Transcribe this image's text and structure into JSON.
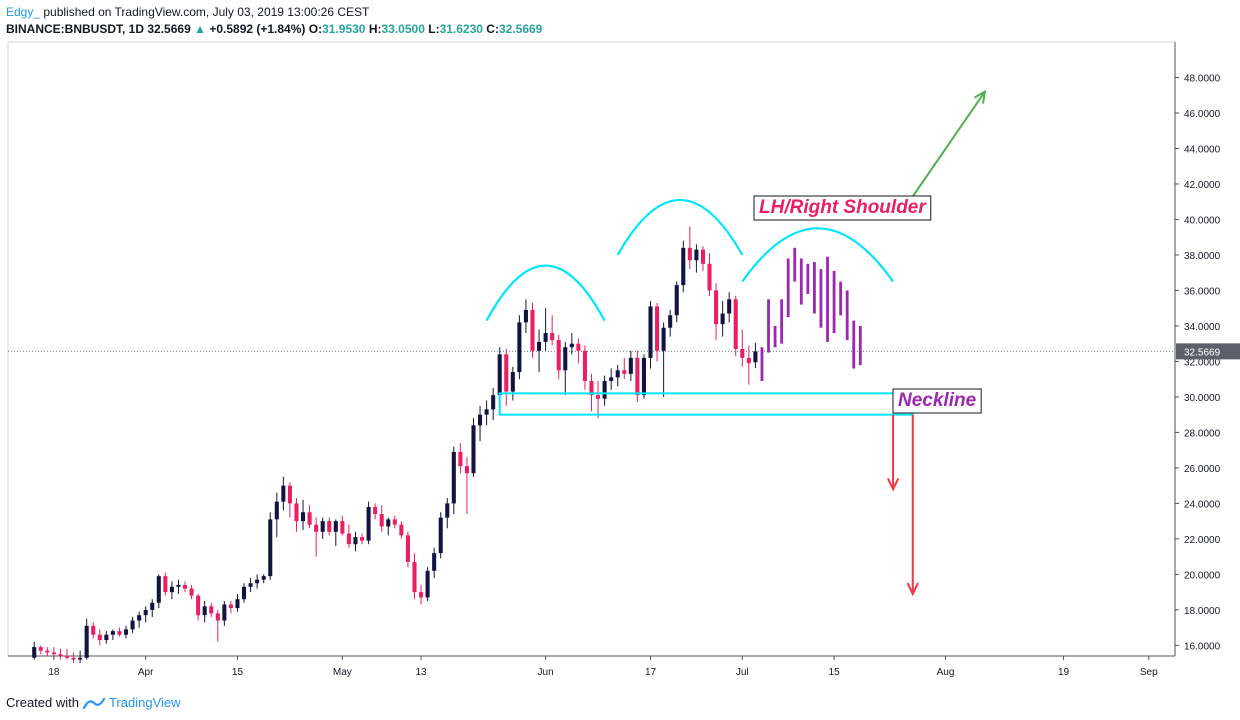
{
  "header": {
    "author": "Edgy_",
    "published": " published on TradingView.com, July 03, 2019 13:00:26 CEST",
    "symbol_line": "BINANCE:BNBUSDT, 1D",
    "last": "32.5669",
    "change_arrow": "▲",
    "change": "+0.5892 (+1.84%)",
    "o_label": "O:",
    "o": "31.9530",
    "h_label": "H:",
    "h": "33.0500",
    "l_label": "L:",
    "l": "31.6230",
    "c_label": "C:",
    "c": "32.5669"
  },
  "footer": {
    "created_with": "Created with",
    "brand": "TradingView"
  },
  "colors": {
    "up": "#131342",
    "down": "#e91e63",
    "neckline_box": "#00e5ff",
    "arc": "#00e5ff",
    "projection": "#9c27b0",
    "arrow_up": "#4caf50",
    "arrow_down": "#f23645",
    "price_tag": "#5d606b"
  },
  "chart_data": {
    "type": "candlestick",
    "symbol": "BINANCE:BNBUSDT",
    "interval": "1D",
    "ylim": [
      15.4,
      50.0
    ],
    "yticks": [
      16,
      18,
      20,
      22,
      24,
      26,
      28,
      30,
      32,
      34,
      36,
      38,
      40,
      42,
      44,
      46,
      48
    ],
    "ytick_labels": [
      "16.0000",
      "18.0000",
      "20.0000",
      "22.0000",
      "24.0000",
      "26.0000",
      "28.0000",
      "30.0000",
      "32.0000",
      "34.0000",
      "36.0000",
      "38.0000",
      "40.0000",
      "42.0000",
      "44.0000",
      "46.0000",
      "48.0000"
    ],
    "x_start": "2019-03-11",
    "x_end": "2019-09-05",
    "xticks": [
      {
        "date": "2019-03-18",
        "label": "18"
      },
      {
        "date": "2019-04-01",
        "label": "Apr"
      },
      {
        "date": "2019-04-15",
        "label": "15"
      },
      {
        "date": "2019-05-01",
        "label": "May"
      },
      {
        "date": "2019-05-13",
        "label": "13"
      },
      {
        "date": "2019-06-01",
        "label": "Jun"
      },
      {
        "date": "2019-06-17",
        "label": "17"
      },
      {
        "date": "2019-07-01",
        "label": "Jul"
      },
      {
        "date": "2019-07-15",
        "label": "15"
      },
      {
        "date": "2019-08-01",
        "label": "Aug"
      },
      {
        "date": "2019-08-19",
        "label": "19"
      },
      {
        "date": "2019-09-01",
        "label": "Sep"
      }
    ],
    "last_price": 32.5669,
    "last_price_label": "32.5669",
    "candles": [
      {
        "date": "2019-03-15",
        "o": 15.3,
        "h": 16.2,
        "l": 15.2,
        "c": 15.9
      },
      {
        "date": "2019-03-16",
        "o": 15.9,
        "h": 16.0,
        "l": 15.5,
        "c": 15.7
      },
      {
        "date": "2019-03-17",
        "o": 15.7,
        "h": 15.9,
        "l": 15.4,
        "c": 15.6
      },
      {
        "date": "2019-03-18",
        "o": 15.6,
        "h": 15.9,
        "l": 15.3,
        "c": 15.5
      },
      {
        "date": "2019-03-19",
        "o": 15.5,
        "h": 15.8,
        "l": 15.2,
        "c": 15.4
      },
      {
        "date": "2019-03-20",
        "o": 15.4,
        "h": 15.8,
        "l": 15.2,
        "c": 15.3
      },
      {
        "date": "2019-03-21",
        "o": 15.3,
        "h": 15.6,
        "l": 15.0,
        "c": 15.2
      },
      {
        "date": "2019-03-22",
        "o": 15.2,
        "h": 15.7,
        "l": 15.0,
        "c": 15.3
      },
      {
        "date": "2019-03-23",
        "o": 15.3,
        "h": 17.5,
        "l": 15.2,
        "c": 17.1
      },
      {
        "date": "2019-03-24",
        "o": 17.1,
        "h": 17.3,
        "l": 16.4,
        "c": 16.6
      },
      {
        "date": "2019-03-25",
        "o": 16.6,
        "h": 16.9,
        "l": 16.0,
        "c": 16.3
      },
      {
        "date": "2019-03-26",
        "o": 16.3,
        "h": 16.8,
        "l": 16.1,
        "c": 16.6
      },
      {
        "date": "2019-03-27",
        "o": 16.6,
        "h": 16.9,
        "l": 16.3,
        "c": 16.8
      },
      {
        "date": "2019-03-28",
        "o": 16.8,
        "h": 17.0,
        "l": 16.5,
        "c": 16.6
      },
      {
        "date": "2019-03-29",
        "o": 16.6,
        "h": 17.1,
        "l": 16.4,
        "c": 16.9
      },
      {
        "date": "2019-03-30",
        "o": 16.9,
        "h": 17.6,
        "l": 16.7,
        "c": 17.4
      },
      {
        "date": "2019-03-31",
        "o": 17.4,
        "h": 17.9,
        "l": 17.0,
        "c": 17.7
      },
      {
        "date": "2019-04-01",
        "o": 17.7,
        "h": 18.2,
        "l": 17.3,
        "c": 18.0
      },
      {
        "date": "2019-04-02",
        "o": 18.0,
        "h": 18.6,
        "l": 17.6,
        "c": 18.4
      },
      {
        "date": "2019-04-03",
        "o": 18.4,
        "h": 20.0,
        "l": 18.1,
        "c": 19.9
      },
      {
        "date": "2019-04-04",
        "o": 19.9,
        "h": 20.1,
        "l": 18.8,
        "c": 19.0
      },
      {
        "date": "2019-04-05",
        "o": 19.0,
        "h": 19.6,
        "l": 18.6,
        "c": 19.3
      },
      {
        "date": "2019-04-06",
        "o": 19.3,
        "h": 19.7,
        "l": 18.9,
        "c": 19.4
      },
      {
        "date": "2019-04-07",
        "o": 19.4,
        "h": 19.6,
        "l": 19.0,
        "c": 19.2
      },
      {
        "date": "2019-04-08",
        "o": 19.2,
        "h": 19.4,
        "l": 18.6,
        "c": 18.8
      },
      {
        "date": "2019-04-09",
        "o": 18.8,
        "h": 18.9,
        "l": 17.4,
        "c": 17.7
      },
      {
        "date": "2019-04-10",
        "o": 17.7,
        "h": 18.5,
        "l": 17.3,
        "c": 18.2
      },
      {
        "date": "2019-04-11",
        "o": 18.2,
        "h": 18.4,
        "l": 17.6,
        "c": 17.8
      },
      {
        "date": "2019-04-12",
        "o": 17.8,
        "h": 18.0,
        "l": 16.2,
        "c": 17.4
      },
      {
        "date": "2019-04-13",
        "o": 17.4,
        "h": 18.5,
        "l": 17.1,
        "c": 18.3
      },
      {
        "date": "2019-04-14",
        "o": 18.3,
        "h": 18.5,
        "l": 17.8,
        "c": 18.1
      },
      {
        "date": "2019-04-15",
        "o": 18.1,
        "h": 18.9,
        "l": 17.9,
        "c": 18.6
      },
      {
        "date": "2019-04-16",
        "o": 18.6,
        "h": 19.5,
        "l": 18.4,
        "c": 19.3
      },
      {
        "date": "2019-04-17",
        "o": 19.3,
        "h": 19.8,
        "l": 19.0,
        "c": 19.5
      },
      {
        "date": "2019-04-18",
        "o": 19.5,
        "h": 20.0,
        "l": 19.2,
        "c": 19.7
      },
      {
        "date": "2019-04-19",
        "o": 19.7,
        "h": 20.0,
        "l": 19.5,
        "c": 19.9
      },
      {
        "date": "2019-04-20",
        "o": 19.9,
        "h": 23.5,
        "l": 19.7,
        "c": 23.1
      },
      {
        "date": "2019-04-21",
        "o": 23.1,
        "h": 24.6,
        "l": 22.1,
        "c": 24.1
      },
      {
        "date": "2019-04-22",
        "o": 24.1,
        "h": 25.5,
        "l": 23.6,
        "c": 25.0
      },
      {
        "date": "2019-04-23",
        "o": 25.0,
        "h": 25.2,
        "l": 23.2,
        "c": 24.0
      },
      {
        "date": "2019-04-24",
        "o": 24.0,
        "h": 24.3,
        "l": 22.4,
        "c": 23.0
      },
      {
        "date": "2019-04-25",
        "o": 23.0,
        "h": 24.2,
        "l": 22.5,
        "c": 23.5
      },
      {
        "date": "2019-04-26",
        "o": 23.5,
        "h": 23.9,
        "l": 22.6,
        "c": 22.8
      },
      {
        "date": "2019-04-27",
        "o": 22.8,
        "h": 23.2,
        "l": 21.0,
        "c": 22.4
      },
      {
        "date": "2019-04-28",
        "o": 22.4,
        "h": 23.2,
        "l": 22.0,
        "c": 23.0
      },
      {
        "date": "2019-04-29",
        "o": 23.0,
        "h": 23.2,
        "l": 22.2,
        "c": 22.4
      },
      {
        "date": "2019-04-30",
        "o": 22.4,
        "h": 23.1,
        "l": 21.6,
        "c": 23.0
      },
      {
        "date": "2019-05-01",
        "o": 23.0,
        "h": 23.3,
        "l": 22.2,
        "c": 22.3
      },
      {
        "date": "2019-05-02",
        "o": 22.3,
        "h": 22.8,
        "l": 21.5,
        "c": 21.7
      },
      {
        "date": "2019-05-03",
        "o": 21.7,
        "h": 22.4,
        "l": 21.3,
        "c": 22.1
      },
      {
        "date": "2019-05-04",
        "o": 22.1,
        "h": 22.3,
        "l": 21.7,
        "c": 21.9
      },
      {
        "date": "2019-05-05",
        "o": 21.9,
        "h": 24.1,
        "l": 21.7,
        "c": 23.8
      },
      {
        "date": "2019-05-06",
        "o": 23.8,
        "h": 24.0,
        "l": 23.1,
        "c": 23.4
      },
      {
        "date": "2019-05-07",
        "o": 23.4,
        "h": 23.9,
        "l": 22.4,
        "c": 22.7
      },
      {
        "date": "2019-05-08",
        "o": 22.7,
        "h": 23.2,
        "l": 22.2,
        "c": 23.1
      },
      {
        "date": "2019-05-09",
        "o": 23.1,
        "h": 23.3,
        "l": 22.6,
        "c": 22.8
      },
      {
        "date": "2019-05-10",
        "o": 22.8,
        "h": 23.0,
        "l": 22.0,
        "c": 22.2
      },
      {
        "date": "2019-05-11",
        "o": 22.2,
        "h": 22.4,
        "l": 20.4,
        "c": 20.7
      },
      {
        "date": "2019-05-12",
        "o": 20.7,
        "h": 21.2,
        "l": 18.6,
        "c": 19.0
      },
      {
        "date": "2019-05-13",
        "o": 19.0,
        "h": 19.4,
        "l": 18.3,
        "c": 18.7
      },
      {
        "date": "2019-05-14",
        "o": 18.7,
        "h": 20.4,
        "l": 18.5,
        "c": 20.2
      },
      {
        "date": "2019-05-15",
        "o": 20.2,
        "h": 21.5,
        "l": 19.8,
        "c": 21.2
      },
      {
        "date": "2019-05-16",
        "o": 21.2,
        "h": 23.5,
        "l": 20.9,
        "c": 23.2
      },
      {
        "date": "2019-05-17",
        "o": 23.2,
        "h": 24.3,
        "l": 22.6,
        "c": 24.0
      },
      {
        "date": "2019-05-18",
        "o": 24.0,
        "h": 27.2,
        "l": 23.4,
        "c": 26.9
      },
      {
        "date": "2019-05-19",
        "o": 26.9,
        "h": 27.4,
        "l": 25.7,
        "c": 26.1
      },
      {
        "date": "2019-05-20",
        "o": 26.1,
        "h": 26.6,
        "l": 23.4,
        "c": 25.7
      },
      {
        "date": "2019-05-21",
        "o": 25.7,
        "h": 28.8,
        "l": 25.5,
        "c": 28.4
      },
      {
        "date": "2019-05-22",
        "o": 28.4,
        "h": 29.5,
        "l": 27.5,
        "c": 29.0
      },
      {
        "date": "2019-05-23",
        "o": 29.0,
        "h": 29.8,
        "l": 28.4,
        "c": 29.3
      },
      {
        "date": "2019-05-24",
        "o": 29.3,
        "h": 30.5,
        "l": 28.7,
        "c": 30.1
      },
      {
        "date": "2019-05-25",
        "o": 30.1,
        "h": 32.8,
        "l": 29.8,
        "c": 32.4
      },
      {
        "date": "2019-05-26",
        "o": 32.4,
        "h": 32.7,
        "l": 29.5,
        "c": 30.3
      },
      {
        "date": "2019-05-27",
        "o": 30.3,
        "h": 31.7,
        "l": 29.8,
        "c": 31.4
      },
      {
        "date": "2019-05-28",
        "o": 31.4,
        "h": 34.6,
        "l": 31.0,
        "c": 34.2
      },
      {
        "date": "2019-05-29",
        "o": 34.2,
        "h": 35.5,
        "l": 33.6,
        "c": 34.9
      },
      {
        "date": "2019-05-30",
        "o": 34.9,
        "h": 35.3,
        "l": 32.2,
        "c": 32.6
      },
      {
        "date": "2019-05-31",
        "o": 32.6,
        "h": 33.8,
        "l": 31.4,
        "c": 33.1
      },
      {
        "date": "2019-06-01",
        "o": 33.1,
        "h": 35.0,
        "l": 32.6,
        "c": 33.6
      },
      {
        "date": "2019-06-02",
        "o": 33.6,
        "h": 34.6,
        "l": 32.9,
        "c": 33.2
      },
      {
        "date": "2019-06-03",
        "o": 33.2,
        "h": 33.5,
        "l": 31.0,
        "c": 31.5
      },
      {
        "date": "2019-06-04",
        "o": 31.5,
        "h": 33.1,
        "l": 30.1,
        "c": 32.8
      },
      {
        "date": "2019-06-05",
        "o": 32.8,
        "h": 33.6,
        "l": 32.4,
        "c": 33.0
      },
      {
        "date": "2019-06-06",
        "o": 33.0,
        "h": 33.3,
        "l": 31.9,
        "c": 32.6
      },
      {
        "date": "2019-06-07",
        "o": 32.6,
        "h": 32.9,
        "l": 30.4,
        "c": 30.9
      },
      {
        "date": "2019-06-08",
        "o": 30.9,
        "h": 31.3,
        "l": 29.2,
        "c": 30.1
      },
      {
        "date": "2019-06-09",
        "o": 30.1,
        "h": 30.9,
        "l": 28.8,
        "c": 29.9
      },
      {
        "date": "2019-06-10",
        "o": 29.9,
        "h": 31.2,
        "l": 29.5,
        "c": 30.9
      },
      {
        "date": "2019-06-11",
        "o": 30.9,
        "h": 31.6,
        "l": 30.4,
        "c": 31.1
      },
      {
        "date": "2019-06-12",
        "o": 31.1,
        "h": 31.8,
        "l": 30.6,
        "c": 31.5
      },
      {
        "date": "2019-06-13",
        "o": 31.5,
        "h": 32.2,
        "l": 31.0,
        "c": 31.3
      },
      {
        "date": "2019-06-14",
        "o": 31.3,
        "h": 32.6,
        "l": 30.9,
        "c": 32.2
      },
      {
        "date": "2019-06-15",
        "o": 32.2,
        "h": 32.6,
        "l": 29.7,
        "c": 30.1
      },
      {
        "date": "2019-06-16",
        "o": 30.1,
        "h": 32.4,
        "l": 29.9,
        "c": 32.2
      },
      {
        "date": "2019-06-17",
        "o": 32.2,
        "h": 35.4,
        "l": 31.6,
        "c": 35.1
      },
      {
        "date": "2019-06-18",
        "o": 35.1,
        "h": 35.3,
        "l": 32.0,
        "c": 32.6
      },
      {
        "date": "2019-06-19",
        "o": 32.6,
        "h": 34.2,
        "l": 30.0,
        "c": 33.9
      },
      {
        "date": "2019-06-20",
        "o": 33.9,
        "h": 34.9,
        "l": 33.4,
        "c": 34.6
      },
      {
        "date": "2019-06-21",
        "o": 34.6,
        "h": 36.5,
        "l": 34.2,
        "c": 36.3
      },
      {
        "date": "2019-06-22",
        "o": 36.3,
        "h": 38.8,
        "l": 35.9,
        "c": 38.4
      },
      {
        "date": "2019-06-23",
        "o": 38.4,
        "h": 39.6,
        "l": 37.2,
        "c": 37.7
      },
      {
        "date": "2019-06-24",
        "o": 37.7,
        "h": 38.6,
        "l": 37.0,
        "c": 38.3
      },
      {
        "date": "2019-06-25",
        "o": 38.3,
        "h": 38.5,
        "l": 37.1,
        "c": 37.5
      },
      {
        "date": "2019-06-26",
        "o": 37.5,
        "h": 38.1,
        "l": 35.7,
        "c": 36.0
      },
      {
        "date": "2019-06-27",
        "o": 36.0,
        "h": 36.4,
        "l": 33.2,
        "c": 34.1
      },
      {
        "date": "2019-06-28",
        "o": 34.1,
        "h": 35.4,
        "l": 33.4,
        "c": 34.7
      },
      {
        "date": "2019-06-29",
        "o": 34.7,
        "h": 35.9,
        "l": 34.2,
        "c": 35.5
      },
      {
        "date": "2019-06-30",
        "o": 35.5,
        "h": 35.7,
        "l": 32.3,
        "c": 32.7
      },
      {
        "date": "2019-07-01",
        "o": 32.7,
        "h": 33.8,
        "l": 31.7,
        "c": 32.2
      },
      {
        "date": "2019-07-02",
        "o": 32.2,
        "h": 32.9,
        "l": 30.7,
        "c": 31.9
      },
      {
        "date": "2019-07-03",
        "o": 31.953,
        "h": 33.05,
        "l": 31.623,
        "c": 32.5669
      }
    ],
    "projection_bars": [
      {
        "date": "2019-07-04",
        "h": 32.8,
        "l": 30.9
      },
      {
        "date": "2019-07-05",
        "h": 35.5,
        "l": 32.5
      },
      {
        "date": "2019-07-06",
        "h": 34.0,
        "l": 32.8
      },
      {
        "date": "2019-07-07",
        "h": 35.5,
        "l": 33.0
      },
      {
        "date": "2019-07-08",
        "h": 37.8,
        "l": 34.5
      },
      {
        "date": "2019-07-09",
        "h": 38.4,
        "l": 36.5
      },
      {
        "date": "2019-07-10",
        "h": 37.8,
        "l": 35.2
      },
      {
        "date": "2019-07-11",
        "h": 37.5,
        "l": 35.8
      },
      {
        "date": "2019-07-12",
        "h": 37.6,
        "l": 34.7
      },
      {
        "date": "2019-07-13",
        "h": 37.2,
        "l": 33.9
      },
      {
        "date": "2019-07-14",
        "h": 37.9,
        "l": 33.1
      },
      {
        "date": "2019-07-15",
        "h": 37.1,
        "l": 33.6
      },
      {
        "date": "2019-07-16",
        "h": 36.5,
        "l": 34.6
      },
      {
        "date": "2019-07-17",
        "h": 36.0,
        "l": 33.2
      },
      {
        "date": "2019-07-18",
        "h": 34.3,
        "l": 31.6
      },
      {
        "date": "2019-07-19",
        "h": 34.0,
        "l": 31.8
      }
    ],
    "annotations": {
      "neckline": {
        "label": "Neckline",
        "x_from": "2019-05-25",
        "x_to": "2019-07-27",
        "y_low": 29.0,
        "y_high": 30.2
      },
      "right_shoulder": {
        "label": "LH/Right Shoulder"
      },
      "arcs": [
        {
          "x_from": "2019-05-23",
          "x_to": "2019-06-10",
          "y_base": 34.3,
          "y_peak": 37.4
        },
        {
          "x_from": "2019-06-12",
          "x_to": "2019-07-01",
          "y_base": 38.0,
          "y_peak": 41.1
        },
        {
          "x_from": "2019-07-01",
          "x_to": "2019-07-24",
          "y_base": 36.5,
          "y_peak": 39.5
        }
      ],
      "arrow_up": {
        "from_date": "2019-07-27",
        "from_y": 41.3,
        "to_date": "2019-08-07",
        "to_y": 47.2
      },
      "arrow_down_1": {
        "x": "2019-07-24",
        "from_y": 29.0,
        "to_y": 24.8
      },
      "arrow_down_2": {
        "x": "2019-07-27",
        "from_y": 29.0,
        "to_y": 18.9
      }
    }
  }
}
